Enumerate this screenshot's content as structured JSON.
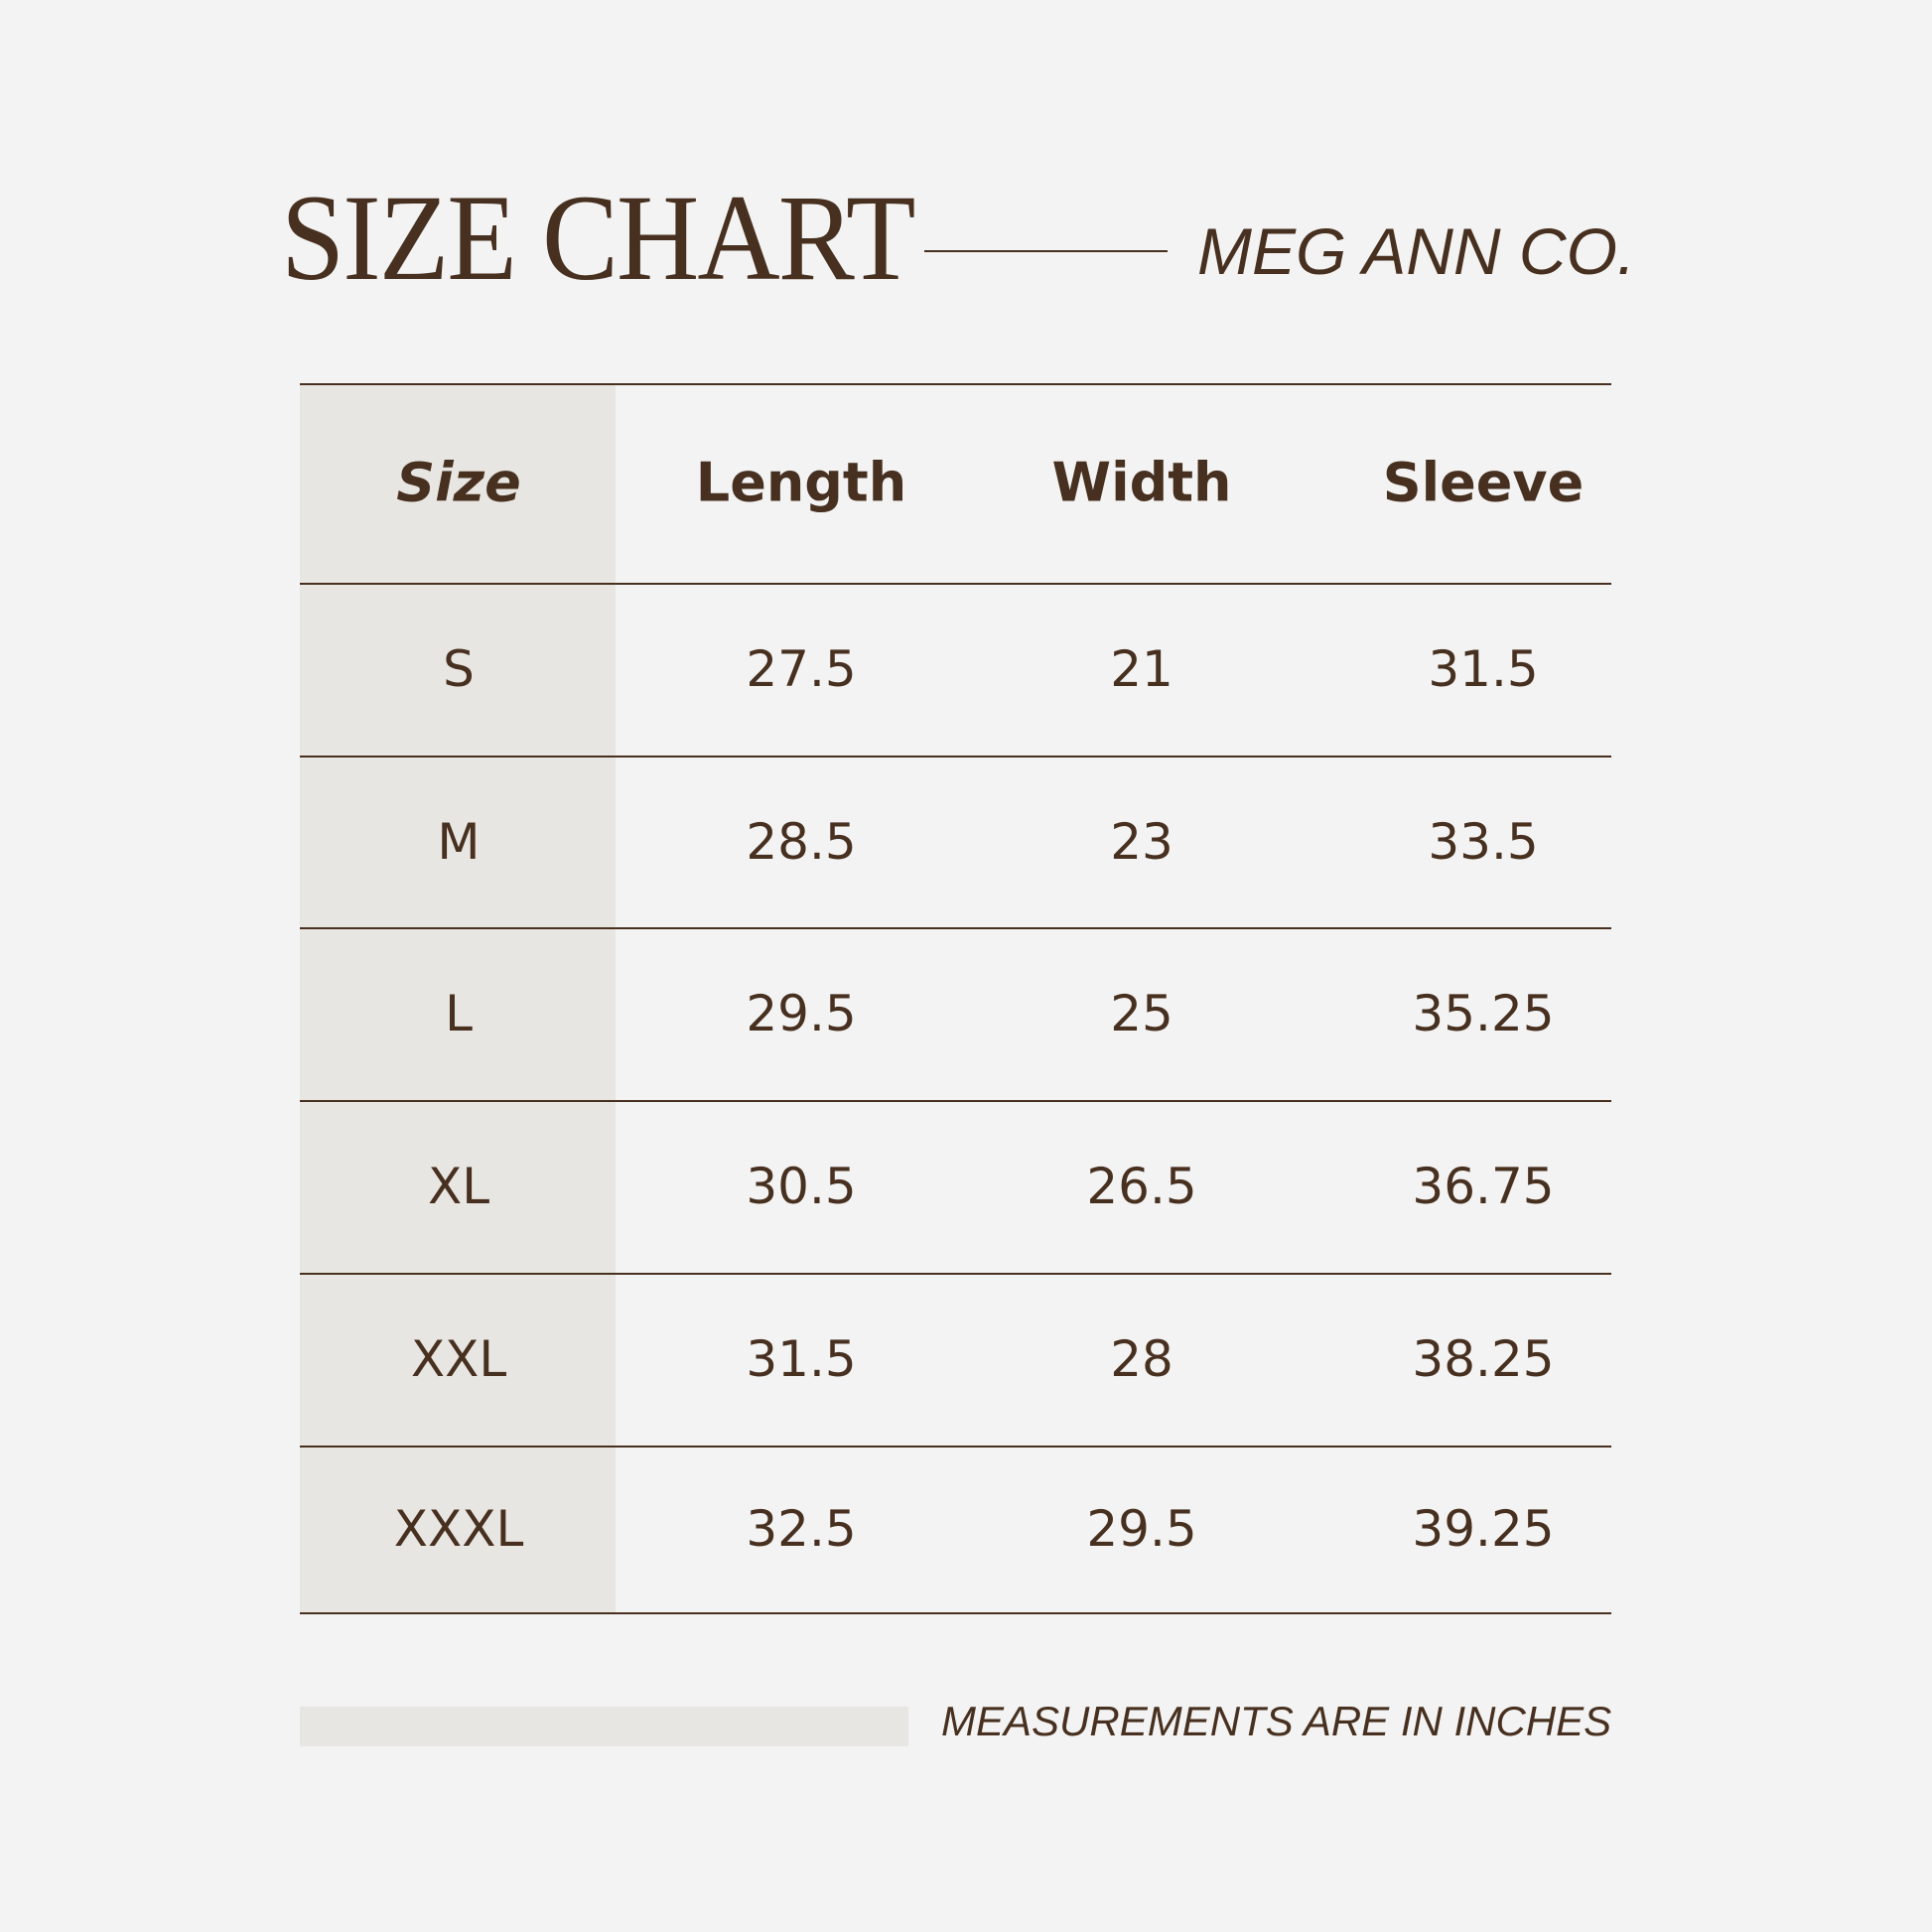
{
  "header": {
    "title": "SIZE CHART",
    "brand": "MEG ANN CO."
  },
  "table": {
    "columns": [
      "Size",
      "Length",
      "Width",
      "Sleeve"
    ],
    "rows": [
      [
        "S",
        "27.5",
        "21",
        "31.5"
      ],
      [
        "M",
        "28.5",
        "23",
        "33.5"
      ],
      [
        "L",
        "29.5",
        "25",
        "35.25"
      ],
      [
        "XL",
        "30.5",
        "26.5",
        "36.75"
      ],
      [
        "XXL",
        "31.5",
        "28",
        "38.25"
      ],
      [
        "XXXL",
        "32.5",
        "29.5",
        "39.25"
      ]
    ]
  },
  "footer": {
    "note": "MEASUREMENTS ARE IN INCHES"
  },
  "colors": {
    "text": "#47301f",
    "background": "#f3f3f3",
    "size_column": "#e8e6e2"
  }
}
